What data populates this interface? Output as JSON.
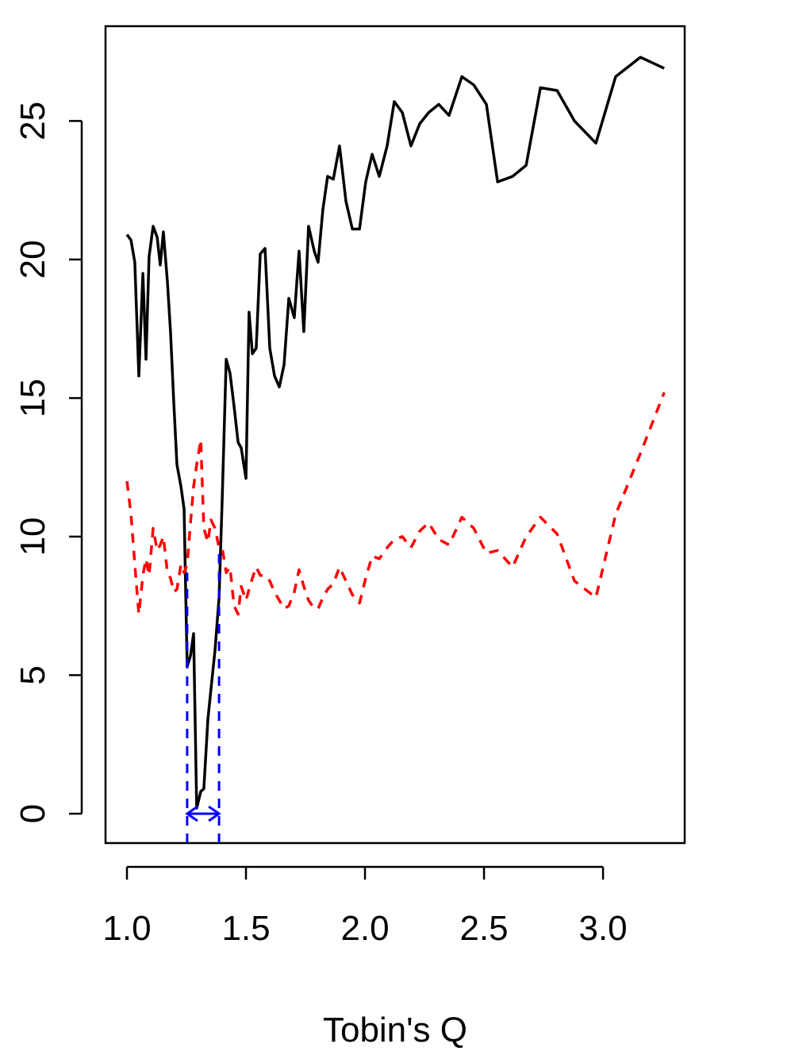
{
  "chart_data": {
    "type": "line",
    "xlabel": "Tobin's Q",
    "x": [
      1.0,
      1.017,
      1.033,
      1.05,
      1.067,
      1.08,
      1.093,
      1.11,
      1.127,
      1.14,
      1.153,
      1.17,
      1.183,
      1.197,
      1.21,
      1.227,
      1.24,
      1.253,
      1.267,
      1.28,
      1.293,
      1.31,
      1.323,
      1.34,
      1.353,
      1.37,
      1.387,
      1.4,
      1.417,
      1.433,
      1.45,
      1.467,
      1.48,
      1.5,
      1.513,
      1.527,
      1.543,
      1.56,
      1.58,
      1.6,
      1.62,
      1.64,
      1.66,
      1.68,
      1.703,
      1.723,
      1.743,
      1.763,
      1.787,
      1.803,
      1.823,
      1.843,
      1.867,
      1.893,
      1.92,
      1.947,
      1.977,
      2.003,
      2.03,
      2.06,
      2.093,
      2.123,
      2.157,
      2.193,
      2.23,
      2.267,
      2.31,
      2.353,
      2.407,
      2.457,
      2.51,
      2.557,
      2.62,
      2.677,
      2.737,
      2.807,
      2.88,
      2.97,
      3.053,
      3.157,
      3.257
    ],
    "series": [
      {
        "color": "#000000",
        "dash": false,
        "values": [
          20.9,
          20.7,
          19.9,
          15.8,
          19.5,
          16.4,
          20.1,
          21.2,
          20.8,
          19.8,
          21.0,
          19.2,
          17.4,
          14.8,
          12.6,
          11.8,
          11.0,
          5.3,
          5.7,
          6.5,
          0.2,
          0.8,
          0.9,
          3.4,
          4.5,
          5.9,
          7.8,
          11.3,
          16.4,
          15.9,
          14.7,
          13.4,
          13.2,
          12.1,
          18.1,
          16.6,
          16.8,
          20.2,
          20.4,
          16.8,
          15.8,
          15.4,
          16.2,
          18.6,
          17.9,
          20.3,
          17.4,
          21.2,
          20.3,
          19.9,
          21.8,
          23.0,
          22.9,
          24.1,
          22.1,
          21.1,
          21.1,
          22.8,
          23.8,
          23.0,
          24.1,
          25.7,
          25.3,
          24.1,
          24.9,
          25.3,
          25.6,
          25.2,
          26.6,
          26.3,
          25.6,
          22.8,
          23.0,
          23.4,
          26.2,
          26.1,
          25.0,
          24.2,
          26.6,
          27.3,
          26.9
        ]
      },
      {
        "color": "#ff0000",
        "dash": true,
        "values": [
          12.0,
          10.8,
          9.0,
          7.2,
          8.6,
          9.2,
          8.6,
          10.3,
          9.5,
          9.7,
          10.0,
          8.7,
          8.5,
          8.0,
          8.1,
          9.0,
          8.7,
          9.0,
          10.5,
          11.8,
          12.6,
          13.5,
          10.3,
          9.8,
          10.6,
          10.3,
          9.6,
          9.6,
          8.7,
          8.9,
          7.5,
          7.2,
          8.2,
          7.7,
          8.1,
          8.5,
          8.9,
          8.6,
          8.6,
          8.4,
          8.0,
          7.7,
          7.4,
          7.5,
          8.0,
          8.8,
          8.2,
          7.7,
          7.4,
          7.4,
          7.8,
          8.1,
          8.3,
          8.9,
          8.4,
          7.9,
          7.6,
          8.5,
          9.3,
          9.2,
          9.6,
          9.9,
          10.0,
          9.6,
          10.2,
          10.5,
          9.9,
          9.7,
          10.7,
          10.3,
          9.4,
          9.5,
          8.9,
          10.0,
          10.7,
          10.1,
          8.4,
          7.8,
          10.8,
          13.0,
          15.2
        ]
      }
    ],
    "vlines": {
      "color": "#0000ff",
      "x": [
        1.253,
        1.387
      ],
      "ytop": [
        8.7,
        9.6
      ],
      "arrow_y": 0
    },
    "xlim": [
      0.91,
      3.343
    ],
    "ylim": [
      -1.06,
      28.42
    ],
    "xticks": [
      {
        "value": 1,
        "label": "1.0"
      },
      {
        "value": 1.5,
        "label": "1.5"
      },
      {
        "value": 2,
        "label": "2.0"
      },
      {
        "value": 2.5,
        "label": "2.5"
      },
      {
        "value": 3,
        "label": "3.0"
      }
    ],
    "yticks": [
      0,
      5,
      10,
      15,
      20,
      25
    ]
  }
}
